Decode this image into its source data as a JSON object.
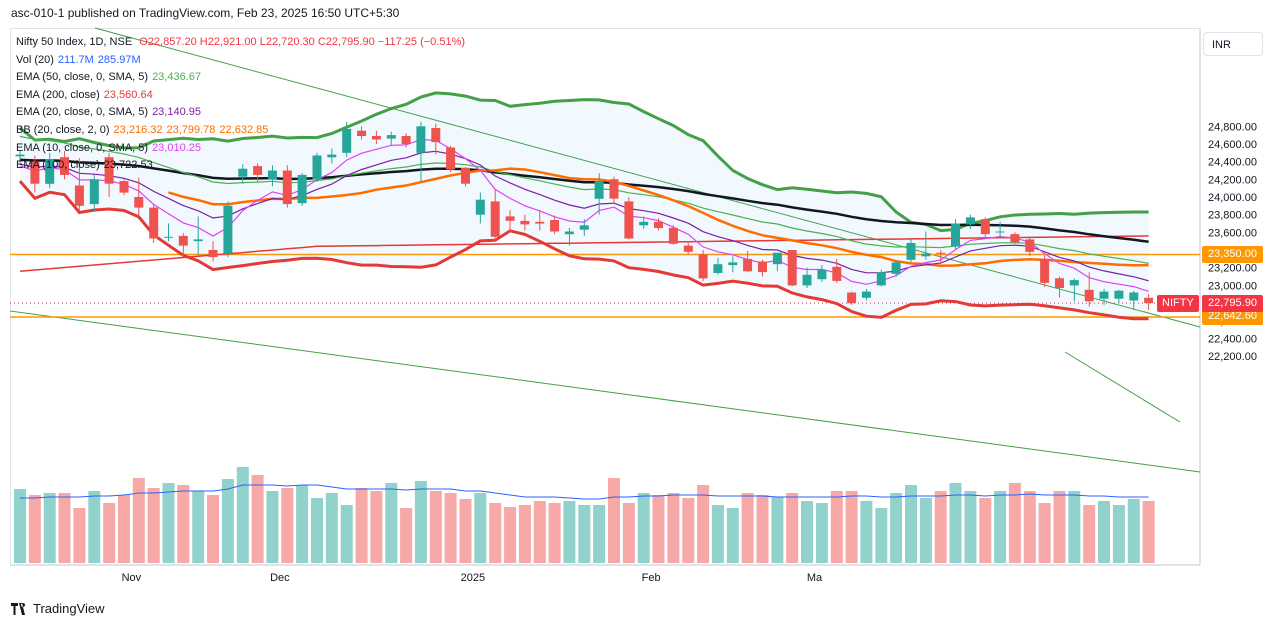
{
  "header": {
    "text": "asc-010-1 published on TradingView.com, Feb 23, 2025 16:50 UTC+5:30"
  },
  "legend": {
    "symbol": "Nifty 50 Index, 1D, NSE",
    "ohlc": "O22,857.20 H22,921.00 L22,720.30 C22,795.90 −117.25 (−0.51%)",
    "rows": [
      {
        "label": "Vol (20)",
        "values": [
          "211.7M",
          "285.97M"
        ],
        "color": "#2962ff"
      },
      {
        "label": "EMA (50, close, 0, SMA, 5)",
        "values": [
          "23,436.67"
        ],
        "color": "#4caf50"
      },
      {
        "label": "EMA (200, close)",
        "values": [
          "23,560.64"
        ],
        "color": "#e53935"
      },
      {
        "label": "EMA (20, close, 0, SMA, 5)",
        "values": [
          "23,140.95"
        ],
        "color": "#7b1fa2"
      },
      {
        "label": "BB (20, close, 2, 0)",
        "values": [
          "23,216.32",
          "23,799.78",
          "22,632.85"
        ],
        "color": "#ff6d00"
      },
      {
        "label": "EMA (10, close, 0, SMA, 5)",
        "values": [
          "23,010.25"
        ],
        "color": "#e040fb"
      },
      {
        "label": "EMA (100, close)",
        "values": [
          "23,722.53"
        ],
        "color": "#131722"
      }
    ]
  },
  "currency": "INR",
  "price_tags": {
    "h_line": "23,350.00",
    "low_line": "22,642.60",
    "last": "22,795.90",
    "symbol": "NIFTY"
  },
  "footer": {
    "brand": "TradingView"
  },
  "colors": {
    "up": "#26a69a",
    "down": "#ef5350",
    "orange": "#ff9800"
  },
  "chart_data": {
    "type": "candlestick",
    "y_axis": {
      "ticks": [
        22200,
        22400,
        22600,
        22800,
        23000,
        23200,
        23400,
        23600,
        23800,
        24000,
        24200,
        24400,
        24600,
        24800
      ],
      "ylim": [
        22000,
        25100
      ]
    },
    "x_axis": {
      "ticks": [
        {
          "label": "Nov",
          "i": 7.5
        },
        {
          "label": "Dec",
          "i": 17.5
        },
        {
          "label": "2025",
          "i": 30.5
        },
        {
          "label": "Feb",
          "i": 42.5
        },
        {
          "label": "Ma",
          "i": 53.5
        }
      ]
    },
    "horizontal_lines": [
      23350,
      22642.6
    ],
    "candles": [
      {
        "o": 24460,
        "h": 24530,
        "l": 24380,
        "c": 24480
      },
      {
        "o": 24400,
        "h": 24470,
        "l": 24050,
        "c": 24150
      },
      {
        "o": 24150,
        "h": 24500,
        "l": 24100,
        "c": 24430
      },
      {
        "o": 24450,
        "h": 24520,
        "l": 24200,
        "c": 24250
      },
      {
        "o": 24130,
        "h": 24440,
        "l": 23850,
        "c": 23900
      },
      {
        "o": 23920,
        "h": 24250,
        "l": 23830,
        "c": 24200
      },
      {
        "o": 24450,
        "h": 24500,
        "l": 24000,
        "c": 24150
      },
      {
        "o": 24180,
        "h": 24200,
        "l": 24020,
        "c": 24050
      },
      {
        "o": 24000,
        "h": 24220,
        "l": 23780,
        "c": 23880
      },
      {
        "o": 23880,
        "h": 23920,
        "l": 23480,
        "c": 23530
      },
      {
        "o": 23540,
        "h": 23700,
        "l": 23500,
        "c": 23550
      },
      {
        "o": 23560,
        "h": 23590,
        "l": 23320,
        "c": 23450
      },
      {
        "o": 23500,
        "h": 23780,
        "l": 23350,
        "c": 23520
      },
      {
        "o": 23400,
        "h": 23500,
        "l": 23270,
        "c": 23320
      },
      {
        "o": 23360,
        "h": 23950,
        "l": 23320,
        "c": 23900
      },
      {
        "o": 24230,
        "h": 24370,
        "l": 24150,
        "c": 24320
      },
      {
        "o": 24350,
        "h": 24380,
        "l": 24170,
        "c": 24250
      },
      {
        "o": 24200,
        "h": 24360,
        "l": 24120,
        "c": 24300
      },
      {
        "o": 24300,
        "h": 24360,
        "l": 23880,
        "c": 23920
      },
      {
        "o": 23930,
        "h": 24270,
        "l": 23900,
        "c": 24250
      },
      {
        "o": 24200,
        "h": 24500,
        "l": 24170,
        "c": 24470
      },
      {
        "o": 24450,
        "h": 24550,
        "l": 24380,
        "c": 24480
      },
      {
        "o": 24500,
        "h": 24850,
        "l": 24450,
        "c": 24770
      },
      {
        "o": 24750,
        "h": 24800,
        "l": 24650,
        "c": 24690
      },
      {
        "o": 24690,
        "h": 24750,
        "l": 24600,
        "c": 24650
      },
      {
        "o": 24660,
        "h": 24740,
        "l": 24580,
        "c": 24700
      },
      {
        "o": 24690,
        "h": 24720,
        "l": 24560,
        "c": 24600
      },
      {
        "o": 24500,
        "h": 24850,
        "l": 24180,
        "c": 24800
      },
      {
        "o": 24780,
        "h": 24830,
        "l": 24480,
        "c": 24620
      },
      {
        "o": 24560,
        "h": 24580,
        "l": 24280,
        "c": 24310
      },
      {
        "o": 24330,
        "h": 24340,
        "l": 24120,
        "c": 24150
      },
      {
        "o": 23800,
        "h": 24050,
        "l": 23700,
        "c": 23970
      },
      {
        "o": 23950,
        "h": 24090,
        "l": 23500,
        "c": 23550
      },
      {
        "o": 23780,
        "h": 23850,
        "l": 23600,
        "c": 23730
      },
      {
        "o": 23730,
        "h": 23800,
        "l": 23620,
        "c": 23690
      },
      {
        "o": 23720,
        "h": 23850,
        "l": 23620,
        "c": 23700
      },
      {
        "o": 23740,
        "h": 23790,
        "l": 23580,
        "c": 23610
      },
      {
        "o": 23580,
        "h": 23650,
        "l": 23450,
        "c": 23610
      },
      {
        "o": 23630,
        "h": 23750,
        "l": 23560,
        "c": 23680
      },
      {
        "o": 23980,
        "h": 24270,
        "l": 23800,
        "c": 24180
      },
      {
        "o": 24200,
        "h": 24230,
        "l": 23930,
        "c": 23980
      },
      {
        "o": 23950,
        "h": 24000,
        "l": 23520,
        "c": 23530
      },
      {
        "o": 23680,
        "h": 23780,
        "l": 23640,
        "c": 23720
      },
      {
        "o": 23720,
        "h": 23760,
        "l": 23620,
        "c": 23650
      },
      {
        "o": 23650,
        "h": 23680,
        "l": 23460,
        "c": 23470
      },
      {
        "o": 23450,
        "h": 23480,
        "l": 23350,
        "c": 23380
      },
      {
        "o": 23350,
        "h": 23400,
        "l": 23050,
        "c": 23080
      },
      {
        "o": 23140,
        "h": 23310,
        "l": 23120,
        "c": 23240
      },
      {
        "o": 23230,
        "h": 23330,
        "l": 23150,
        "c": 23260
      },
      {
        "o": 23300,
        "h": 23390,
        "l": 23150,
        "c": 23160
      },
      {
        "o": 23270,
        "h": 23290,
        "l": 23100,
        "c": 23150
      },
      {
        "o": 23240,
        "h": 23360,
        "l": 23160,
        "c": 23370
      },
      {
        "o": 23400,
        "h": 23400,
        "l": 22990,
        "c": 23000
      },
      {
        "o": 23000,
        "h": 23200,
        "l": 22970,
        "c": 23120
      },
      {
        "o": 23070,
        "h": 23230,
        "l": 23040,
        "c": 23180
      },
      {
        "o": 23210,
        "h": 23300,
        "l": 23030,
        "c": 23050
      },
      {
        "o": 22920,
        "h": 22930,
        "l": 22780,
        "c": 22800
      },
      {
        "o": 22860,
        "h": 22960,
        "l": 22830,
        "c": 22930
      },
      {
        "o": 23000,
        "h": 23180,
        "l": 22990,
        "c": 23150
      },
      {
        "o": 23130,
        "h": 23280,
        "l": 23100,
        "c": 23260
      },
      {
        "o": 23290,
        "h": 23520,
        "l": 23260,
        "c": 23480
      },
      {
        "o": 23330,
        "h": 23610,
        "l": 23290,
        "c": 23360
      },
      {
        "o": 23370,
        "h": 23400,
        "l": 23240,
        "c": 23360
      },
      {
        "o": 23440,
        "h": 23750,
        "l": 23410,
        "c": 23700
      },
      {
        "o": 23690,
        "h": 23800,
        "l": 23640,
        "c": 23770
      },
      {
        "o": 23750,
        "h": 23770,
        "l": 23550,
        "c": 23580
      },
      {
        "o": 23600,
        "h": 23720,
        "l": 23540,
        "c": 23610
      },
      {
        "o": 23580,
        "h": 23600,
        "l": 23470,
        "c": 23490
      },
      {
        "o": 23520,
        "h": 23540,
        "l": 23330,
        "c": 23380
      },
      {
        "o": 23300,
        "h": 23340,
        "l": 22980,
        "c": 23030
      },
      {
        "o": 23080,
        "h": 23100,
        "l": 22860,
        "c": 22970
      },
      {
        "o": 23000,
        "h": 23080,
        "l": 22820,
        "c": 23060
      },
      {
        "o": 22950,
        "h": 23150,
        "l": 22760,
        "c": 22820
      },
      {
        "o": 22850,
        "h": 22960,
        "l": 22780,
        "c": 22930
      },
      {
        "o": 22850,
        "h": 22950,
        "l": 22800,
        "c": 22940
      },
      {
        "o": 22830,
        "h": 22940,
        "l": 22720,
        "c": 22920
      },
      {
        "o": 22860,
        "h": 22900,
        "l": 22720,
        "c": 22800
      }
    ],
    "volume_bars": [
      74,
      68,
      70,
      70,
      55,
      72,
      60,
      68,
      85,
      75,
      80,
      78,
      72,
      68,
      84,
      96,
      88,
      72,
      75,
      78,
      65,
      70,
      58,
      75,
      72,
      80,
      55,
      82,
      72,
      70,
      64,
      70,
      60,
      56,
      58,
      62,
      60,
      62,
      58,
      58,
      85,
      60,
      70,
      68,
      70,
      65,
      78,
      58,
      55,
      70,
      68,
      66,
      70,
      62,
      60,
      72,
      72,
      62,
      55,
      70,
      78,
      65,
      72,
      80,
      72,
      65,
      72,
      80,
      72,
      60,
      72,
      72,
      58,
      62,
      58,
      64,
      62
    ],
    "volume_avg": [
      65,
      65,
      66,
      66,
      66,
      67,
      67,
      68,
      70,
      70,
      71,
      72,
      72,
      72,
      74,
      78,
      78,
      78,
      77,
      78,
      78,
      76,
      74,
      74,
      74,
      74,
      73,
      74,
      74,
      74,
      72,
      72,
      70,
      68,
      66,
      66,
      66,
      65,
      64,
      64,
      66,
      66,
      67,
      67,
      68,
      68,
      68,
      67,
      67,
      67,
      67,
      66,
      66,
      66,
      66,
      66,
      67,
      67,
      66,
      66,
      67,
      67,
      67,
      68,
      68,
      67,
      68,
      68,
      69,
      68,
      68,
      68,
      67,
      67,
      66,
      66,
      66
    ]
  }
}
